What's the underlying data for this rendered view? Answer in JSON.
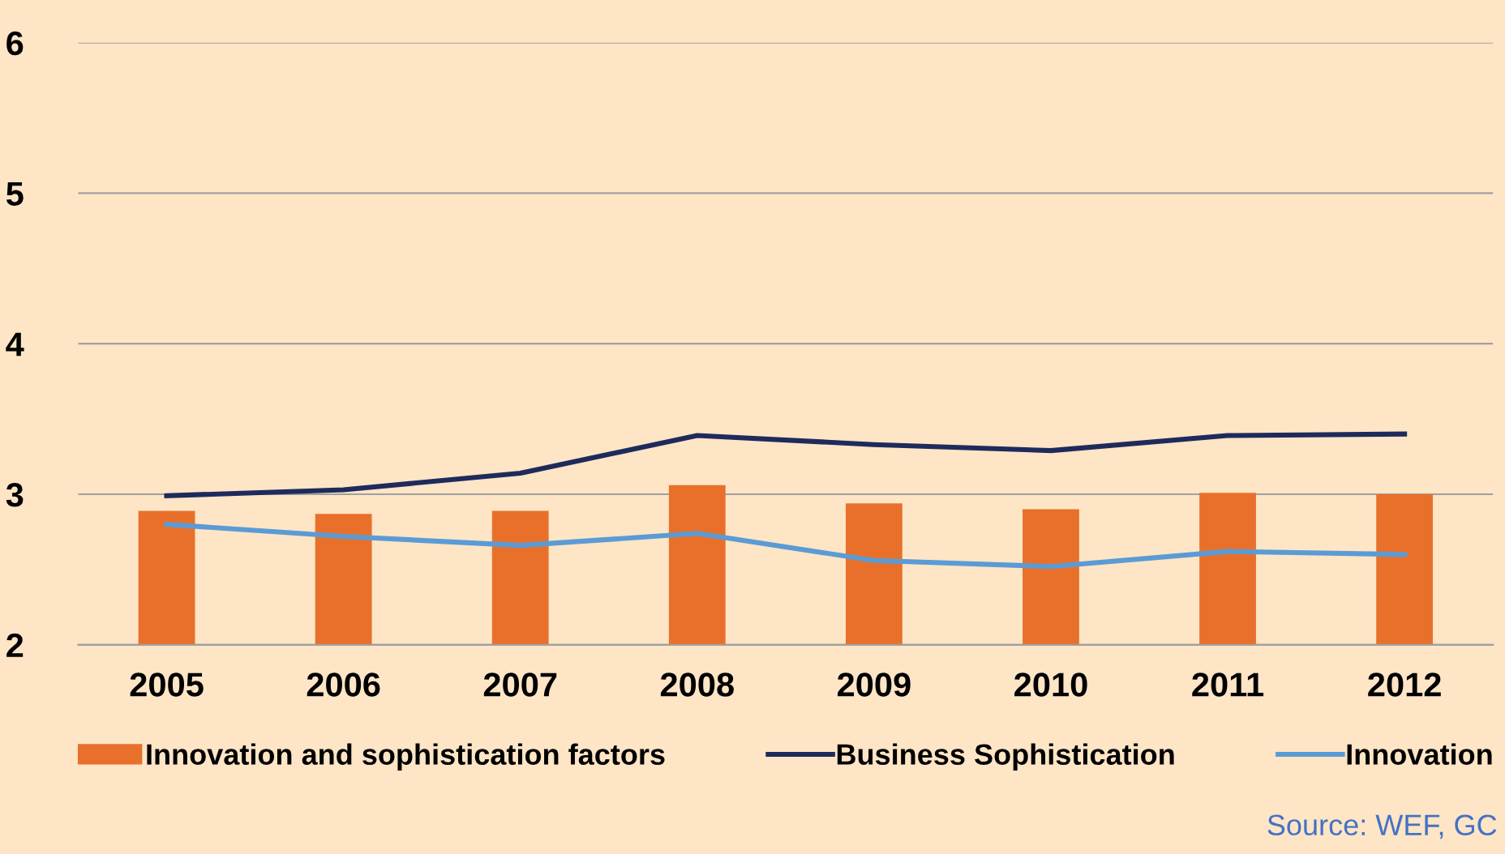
{
  "chart_data": {
    "type": "bar",
    "categories": [
      "2005",
      "2006",
      "2007",
      "2008",
      "2009",
      "2010",
      "2011",
      "2012"
    ],
    "series": [
      {
        "name": "Innovation and sophistication factors",
        "color": "#e8702a",
        "values": [
          2.89,
          2.87,
          2.89,
          3.06,
          2.94,
          2.9,
          3.01,
          3.0
        ]
      },
      {
        "name": "Business Sophistication",
        "type": "line",
        "color": "#1f2a5c",
        "values": [
          2.99,
          3.03,
          3.14,
          3.39,
          3.33,
          3.29,
          3.39,
          3.4
        ]
      },
      {
        "name": "Innovation",
        "type": "line",
        "color": "#5b9bd5",
        "values": [
          2.8,
          2.72,
          2.66,
          2.74,
          2.56,
          2.52,
          2.62,
          2.6
        ]
      }
    ],
    "ylim": [
      2,
      6
    ],
    "yticks": [
      2,
      3,
      4,
      5,
      6
    ],
    "grid": "y",
    "legend": "bottom",
    "marker": "none",
    "line_style": "solid",
    "annotations": [
      "Source: WEF, GC"
    ]
  }
}
